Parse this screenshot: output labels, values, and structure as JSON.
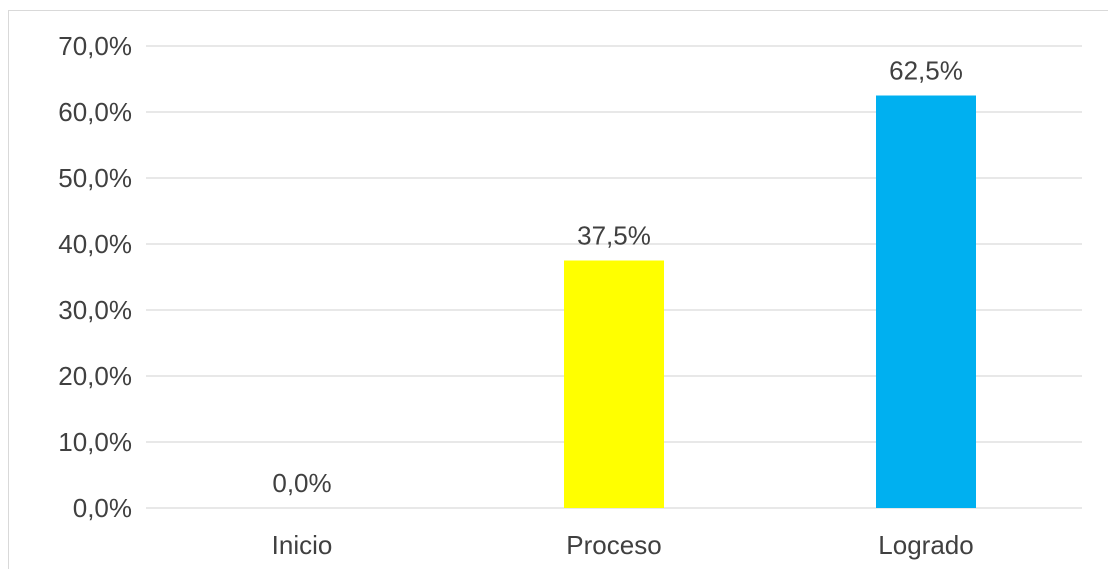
{
  "chart_data": {
    "type": "bar",
    "categories": [
      "Inicio",
      "Proceso",
      "Logrado"
    ],
    "values": [
      0.0,
      37.5,
      62.5
    ],
    "data_labels": [
      "0,0%",
      "37,5%",
      "62,5%"
    ],
    "ylim": [
      0,
      70
    ],
    "yticks": [
      0,
      10,
      20,
      30,
      40,
      50,
      60,
      70
    ],
    "ytick_labels": [
      "0,0%",
      "10,0%",
      "20,0%",
      "30,0%",
      "40,0%",
      "50,0%",
      "60,0%",
      "70,0%"
    ],
    "colors": [
      "#7f7f7f",
      "#ffff00",
      "#00b0f0"
    ],
    "grid": true,
    "legend": "none"
  }
}
